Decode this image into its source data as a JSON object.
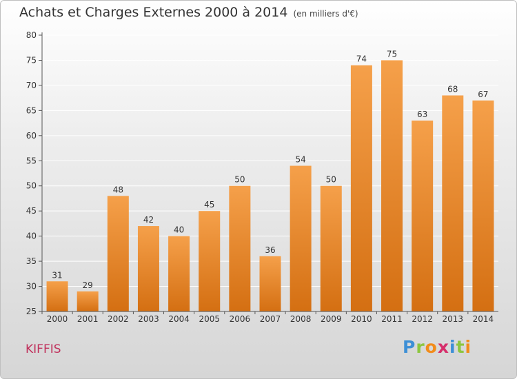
{
  "title": "Achats et Charges Externes 2000 à 2014",
  "unit_label": "(en milliers d'€)",
  "commune": "KIFFIS",
  "logo": {
    "letters": [
      {
        "ch": "P",
        "color": "#3d8fd6"
      },
      {
        "ch": "r",
        "color": "#8cc63f"
      },
      {
        "ch": "o",
        "color": "#f28c1a"
      },
      {
        "ch": "x",
        "color": "#d62f6b"
      },
      {
        "ch": "i",
        "color": "#3d8fd6"
      },
      {
        "ch": "t",
        "color": "#8cc63f"
      },
      {
        "ch": "i",
        "color": "#f28c1a"
      }
    ]
  },
  "colors": {
    "bar_light": "#f5a04a",
    "bar_dark": "#d46f12",
    "axis": "#555555",
    "grid": "#ffffff"
  },
  "chart_data": {
    "type": "bar",
    "categories": [
      "2000",
      "2001",
      "2002",
      "2003",
      "2004",
      "2005",
      "2006",
      "2007",
      "2008",
      "2009",
      "2010",
      "2011",
      "2012",
      "2013",
      "2014"
    ],
    "values": [
      31,
      29,
      48,
      42,
      40,
      45,
      50,
      36,
      54,
      50,
      74,
      75,
      63,
      68,
      67
    ],
    "yticks": [
      25,
      30,
      35,
      40,
      45,
      50,
      55,
      60,
      65,
      70,
      75,
      80
    ],
    "ylim": [
      25,
      80
    ],
    "grid": true,
    "data_labels": true
  }
}
